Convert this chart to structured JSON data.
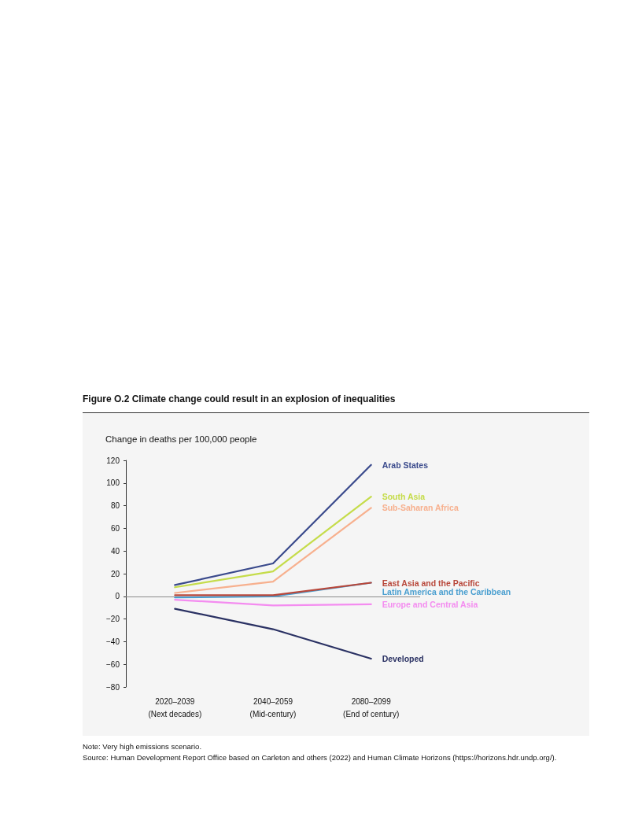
{
  "chart_data": {
    "type": "line",
    "title": "Figure O.2 Climate change could result in an explosion of inequalities",
    "ylabel": "Change in deaths per 100,000 people",
    "categories": [
      "2020–2039\n(Next decades)",
      "2040–2059\n(Mid-century)",
      "2080–2099\n(End of century)"
    ],
    "series": [
      {
        "name": "Arab States",
        "color": "#3a4a8c",
        "values": [
          10,
          29,
          116
        ]
      },
      {
        "name": "South Asia",
        "color": "#c5dc4a",
        "values": [
          8,
          22,
          88
        ]
      },
      {
        "name": "Sub-Saharan Africa",
        "color": "#f7b08e",
        "values": [
          3,
          13,
          78
        ]
      },
      {
        "name": "East Asia and the Pacific",
        "color": "#b8473a",
        "values": [
          1,
          1,
          12
        ]
      },
      {
        "name": "Latin America and the Caribbean",
        "color": "#4a9fd0",
        "values": [
          -1,
          0,
          12
        ]
      },
      {
        "name": "Europe and Central Asia",
        "color": "#f48cf0",
        "values": [
          -3,
          -8,
          -7
        ]
      },
      {
        "name": "Developed",
        "color": "#2a3163",
        "values": [
          -11,
          -29,
          -55
        ]
      }
    ],
    "ylim": [
      -80,
      120
    ],
    "yticks": [
      -80,
      -60,
      -40,
      -20,
      0,
      20,
      40,
      60,
      80,
      100,
      120
    ],
    "ref_lines": [
      {
        "axis": "y",
        "value": 0,
        "color": "#8a8a8a"
      }
    ],
    "grid": false,
    "legend": false,
    "marker": "none",
    "line_style": "solid",
    "annotations": [
      "Note: Very high emissions scenario.",
      "Source: Human Development Report Office based on Carleton and others (2022) and Human Climate Horizons (https://horizons.hdr.undp.org/)."
    ]
  }
}
